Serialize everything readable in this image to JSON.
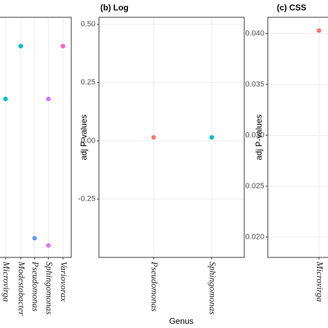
{
  "chart_data": [
    {
      "type": "scatter",
      "categories": [
        "Microvirga",
        "Modestobacter",
        "Pseudomonas",
        "Sphingomonas",
        "Variovorax"
      ],
      "series": [
        {
          "color": "#00BFC4",
          "values": [
            0.66,
            0.88,
            null,
            null,
            null
          ]
        },
        {
          "color": "#619CFF",
          "values": [
            null,
            null,
            0.08,
            null,
            null
          ]
        },
        {
          "color": "#DB72FB",
          "values": [
            null,
            null,
            null,
            0.66,
            null
          ]
        },
        {
          "color": "#DB72FB",
          "values": [
            null,
            null,
            null,
            0.05,
            null
          ]
        },
        {
          "color": "#FF61C3",
          "values": [
            null,
            null,
            null,
            null,
            0.88
          ]
        }
      ],
      "ylim": [
        0,
        1
      ],
      "grid": true
    },
    {
      "type": "scatter",
      "title": "(b) Log",
      "ylabel": "adj P-values",
      "xlabel": "Genus",
      "categories": [
        "Pseudomonas",
        "Sphingomonas"
      ],
      "series": [
        {
          "color": "#F8766D",
          "values": [
            0.015,
            null
          ]
        },
        {
          "color": "#00BFC4",
          "values": [
            null,
            0.015
          ]
        }
      ],
      "ylim": [
        -0.5,
        0.53
      ],
      "yticks": [
        {
          "value": 0.5,
          "label": "0.50"
        },
        0.25,
        {
          "value": 0,
          "label": "0.00"
        },
        -0.25
      ],
      "grid": true
    },
    {
      "type": "scatter",
      "title": "(c) CSS",
      "ylabel": "adj P-values",
      "categories": [
        "Microvirga"
      ],
      "series": [
        {
          "color": "#F8766D",
          "values": [
            0.0403
          ]
        }
      ],
      "ylim": [
        0.018,
        0.0416
      ],
      "yticks": [
        {
          "value": 0.04,
          "label": "0.040"
        },
        0.035,
        {
          "value": 0.03,
          "label": "0.030"
        },
        0.025,
        {
          "value": 0.02,
          "label": "0.020"
        }
      ],
      "grid": true
    }
  ]
}
